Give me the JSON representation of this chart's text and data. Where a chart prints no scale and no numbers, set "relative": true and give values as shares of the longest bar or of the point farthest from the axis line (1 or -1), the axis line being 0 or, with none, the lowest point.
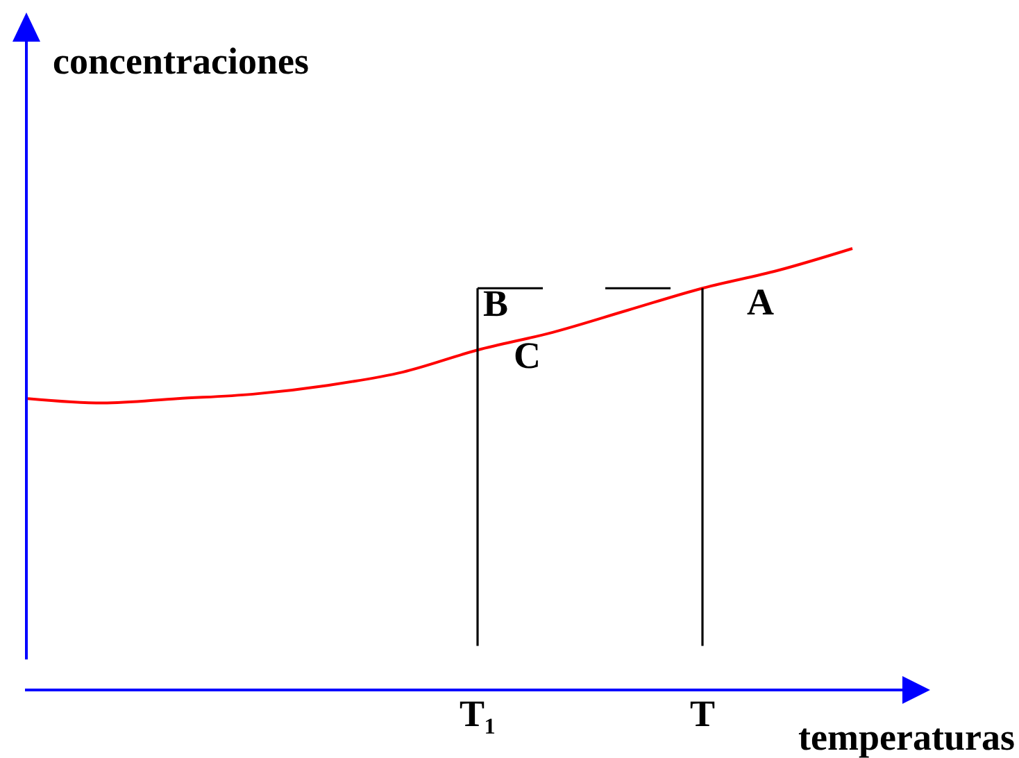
{
  "chart_data": {
    "type": "line",
    "relative": true,
    "xlabel": "temperaturas",
    "ylabel": "concentraciones",
    "categories": [
      null,
      null,
      null,
      null,
      null,
      null,
      "T₁",
      null,
      null,
      "T",
      null,
      null
    ],
    "series": [
      {
        "color": "#ff0000",
        "values": [
          0.66,
          0.65,
          0.66,
          0.67,
          0.69,
          0.72,
          0.77,
          0.81,
          0.86,
          0.91,
          0.95,
          1
        ]
      },
      {
        "color": "#000000",
        "x": [
          "T₁",
          "T₁"
        ],
        "values": [
          0.1,
          0.91
        ]
      },
      {
        "color": "#000000",
        "x": [
          "T",
          "T"
        ],
        "values": [
          0.1,
          0.91
        ]
      },
      {
        "color": "#000000",
        "x": [
          "T₁",
          "T"
        ],
        "values": [
          0.91,
          0.91
        ],
        "line_style": "dashed"
      }
    ],
    "annotations": [
      {
        "text": "A",
        "x": "T",
        "y": 0.91
      },
      {
        "text": "B",
        "x": "T₁",
        "y": 0.91
      },
      {
        "text": "C",
        "x": "T₁",
        "y": 0.77
      }
    ]
  }
}
